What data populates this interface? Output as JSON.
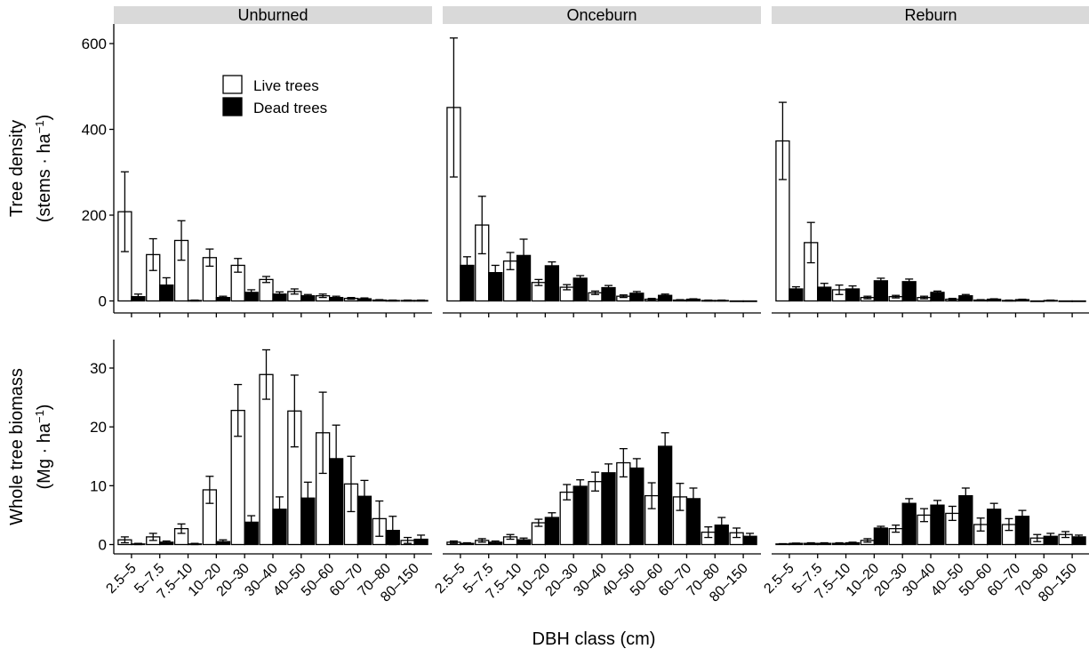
{
  "chart_data": {
    "type": "bar",
    "facets": [
      "Unburned",
      "Onceburn",
      "Reburn"
    ],
    "categories": [
      "2.5–5",
      "5–7.5",
      "7.5–10",
      "10–20",
      "20–30",
      "30–40",
      "40–50",
      "50–60",
      "60–70",
      "70–80",
      "80–150"
    ],
    "xlabel": "DBH class (cm)",
    "legend": {
      "position": "inside-top-left",
      "entries": [
        {
          "name": "Live trees",
          "fill": "#ffffff"
        },
        {
          "name": "Dead trees",
          "fill": "#000000"
        }
      ]
    },
    "grid": false,
    "panels": [
      {
        "row": "density",
        "ylabel_line1": "Tree density",
        "ylabel_line2_prefix": "(stems · ha",
        "ylabel_sup": "−1",
        "ylabel_suffix": ")",
        "ylim": [
          0,
          645
        ],
        "yticks": [
          0,
          200,
          400,
          600
        ],
        "data": {
          "Unburned": {
            "live": {
              "values": [
                208,
                108,
                141,
                101,
                83,
                50,
                22,
                12,
                6,
                2,
                1
              ],
              "err": [
                93,
                37,
                46,
                20,
                16,
                7,
                6,
                4,
                2,
                1,
                1
              ]
            },
            "dead": {
              "values": [
                10,
                37,
                1,
                8,
                20,
                16,
                12,
                8,
                5,
                1,
                1
              ],
              "err": [
                6,
                17,
                1,
                3,
                6,
                5,
                3,
                3,
                2,
                1,
                1
              ]
            }
          },
          "Onceburn": {
            "live": {
              "values": [
                451,
                177,
                93,
                43,
                32,
                19,
                11,
                4,
                2,
                1,
                0
              ],
              "err": [
                162,
                67,
                20,
                7,
                6,
                4,
                3,
                2,
                1,
                1,
                0
              ]
            },
            "dead": {
              "values": [
                83,
                66,
                106,
                82,
                53,
                31,
                18,
                13,
                4,
                1,
                0
              ],
              "err": [
                20,
                17,
                38,
                9,
                6,
                5,
                4,
                3,
                1,
                1,
                0
              ]
            }
          },
          "Reburn": {
            "live": {
              "values": [
                373,
                136,
                26,
                8,
                10,
                8,
                4,
                2,
                1,
                0,
                0
              ],
              "err": [
                90,
                47,
                11,
                3,
                3,
                3,
                2,
                1,
                1,
                0,
                0
              ]
            },
            "dead": {
              "values": [
                28,
                32,
                28,
                47,
                45,
                20,
                12,
                4,
                3,
                1,
                0
              ],
              "err": [
                5,
                9,
                7,
                6,
                6,
                3,
                3,
                1,
                1,
                1,
                0
              ]
            }
          }
        }
      },
      {
        "row": "biomass",
        "ylabel_line1": "Whole tree biomass",
        "ylabel_line2_prefix": "(Mg · ha",
        "ylabel_sup": "−1",
        "ylabel_suffix": ")",
        "ylim": [
          0,
          35
        ],
        "yticks": [
          0,
          10,
          20,
          30
        ],
        "data": {
          "Unburned": {
            "live": {
              "values": [
                0.8,
                1.3,
                2.7,
                9.3,
                22.8,
                28.9,
                22.7,
                19.0,
                10.3,
                4.4,
                0.7
              ],
              "err": [
                0.5,
                0.6,
                0.8,
                2.3,
                4.4,
                4.2,
                6.1,
                6.9,
                4.7,
                3.0,
                0.5
              ]
            },
            "dead": {
              "values": [
                0.1,
                0.4,
                0.1,
                0.5,
                3.8,
                6.0,
                7.9,
                14.6,
                8.2,
                2.4,
                0.9
              ],
              "err": [
                0.1,
                0.2,
                0.1,
                0.3,
                1.1,
                2.1,
                2.7,
                5.7,
                2.7,
                2.4,
                0.7
              ]
            }
          },
          "Onceburn": {
            "live": {
              "values": [
                0.4,
                0.7,
                1.3,
                3.7,
                8.9,
                10.7,
                13.9,
                8.3,
                8.1,
                2.1,
                2.0
              ],
              "err": [
                0.2,
                0.3,
                0.4,
                0.6,
                1.3,
                1.6,
                2.4,
                2.2,
                2.3,
                0.9,
                0.8
              ]
            },
            "dead": {
              "values": [
                0.2,
                0.4,
                0.8,
                4.6,
                9.9,
                12.2,
                13.0,
                16.7,
                7.8,
                3.3,
                1.4
              ],
              "err": [
                0.1,
                0.2,
                0.3,
                0.8,
                1.1,
                1.5,
                1.6,
                2.3,
                1.8,
                1.3,
                0.5
              ]
            }
          },
          "Reburn": {
            "live": {
              "values": [
                0.1,
                0.2,
                0.2,
                0.7,
                2.7,
                5.0,
                5.3,
                3.4,
                3.4,
                1.1,
                1.7
              ],
              "err": [
                0.05,
                0.1,
                0.1,
                0.3,
                0.6,
                1.1,
                1.2,
                1.1,
                1.0,
                0.6,
                0.5
              ]
            },
            "dead": {
              "values": [
                0.2,
                0.2,
                0.3,
                2.8,
                7.0,
                6.7,
                8.3,
                6.0,
                4.8,
                1.4,
                1.3
              ],
              "err": [
                0.05,
                0.1,
                0.1,
                0.3,
                0.8,
                0.8,
                1.3,
                1.0,
                1.0,
                0.5,
                0.3
              ]
            }
          }
        }
      }
    ]
  }
}
